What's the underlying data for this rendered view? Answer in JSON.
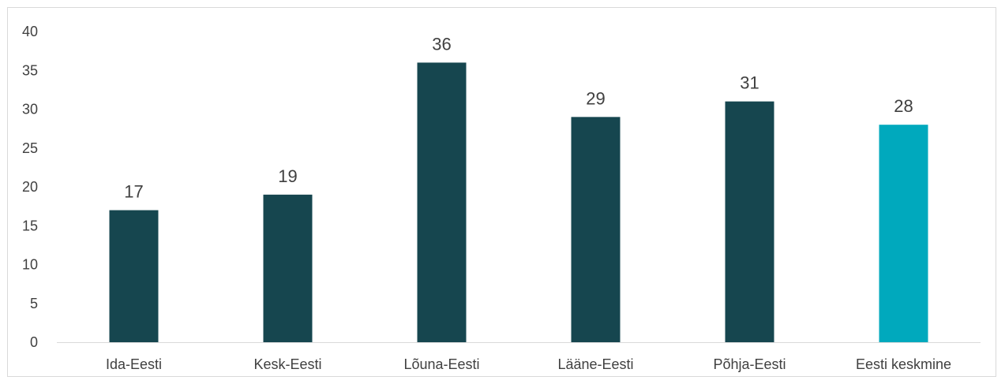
{
  "chart_data": {
    "type": "bar",
    "title": "",
    "xlabel": "",
    "ylabel": "",
    "categories": [
      "Ida-Eesti",
      "Kesk-Eesti",
      "Lõuna-Eesti",
      "Lääne-Eesti",
      "Põhja-Eesti",
      "Eesti keskmine"
    ],
    "values": [
      17,
      19,
      36,
      29,
      31,
      28
    ],
    "colors": [
      "#16464f",
      "#16464f",
      "#16464f",
      "#16464f",
      "#16464f",
      "#00a9bd"
    ],
    "ylim": [
      0,
      40
    ],
    "yticks": [
      0,
      5,
      10,
      15,
      20,
      25,
      30,
      35,
      40
    ],
    "grid": false,
    "legend": "none",
    "data_labels": true
  }
}
